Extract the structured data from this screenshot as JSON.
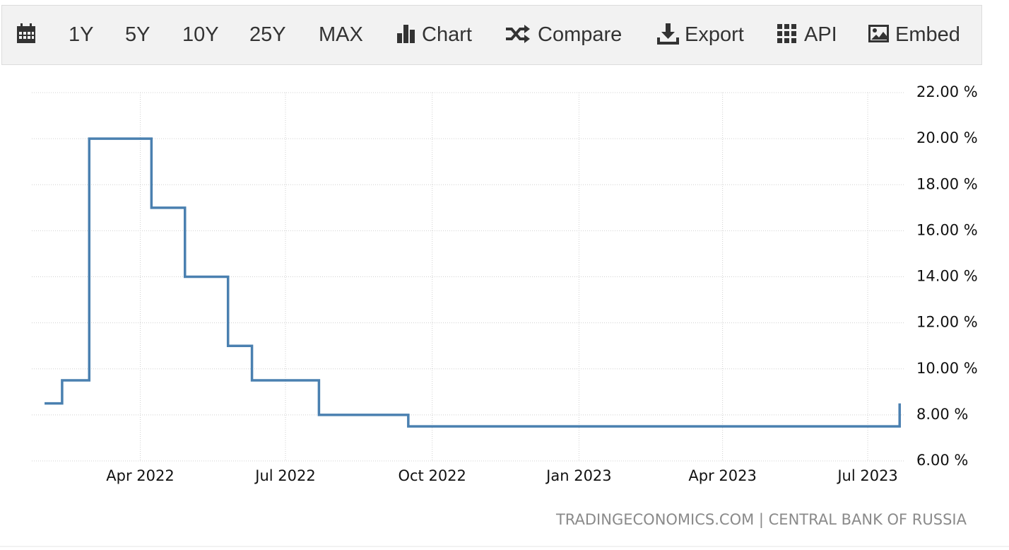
{
  "toolbar": {
    "buttons": [
      "1Y",
      "5Y",
      "10Y",
      "25Y",
      "MAX",
      "Chart",
      "Compare",
      "Export",
      "API",
      "Embed"
    ]
  },
  "chart_data": {
    "type": "line",
    "step": "after",
    "x": [
      "2022-01-31",
      "2022-02-11",
      "2022-02-28",
      "2022-04-08",
      "2022-04-29",
      "2022-05-26",
      "2022-06-10",
      "2022-07-22",
      "2022-09-16",
      "2023-07-21"
    ],
    "values": [
      8.5,
      9.5,
      20,
      17,
      14,
      11,
      9.5,
      8,
      7.5,
      8.5
    ],
    "color": "#4a80b0",
    "xlim": [
      "2022-01-23",
      "2023-07-24"
    ],
    "xticks": [
      {
        "value": "2022-04-01",
        "label": "Apr 2022"
      },
      {
        "value": "2022-07-01",
        "label": "Jul 2022"
      },
      {
        "value": "2022-10-01",
        "label": "Oct 2022"
      },
      {
        "value": "2023-01-01",
        "label": "Jan 2023"
      },
      {
        "value": "2023-04-01",
        "label": "Apr 2023"
      },
      {
        "value": "2023-07-01",
        "label": "Jul 2023"
      }
    ],
    "ylim": [
      6,
      22
    ],
    "yticks": [
      {
        "value": 6,
        "label": "6.00 %"
      },
      {
        "value": 8,
        "label": "8.00 %"
      },
      {
        "value": 10,
        "label": "10.00 %"
      },
      {
        "value": 12,
        "label": "12.00 %"
      },
      {
        "value": 14,
        "label": "14.00 %"
      },
      {
        "value": 16,
        "label": "16.00 %"
      },
      {
        "value": 18,
        "label": "18.00 %"
      },
      {
        "value": 20,
        "label": "20.00 %"
      },
      {
        "value": 22,
        "label": "22.00 %"
      }
    ],
    "grid": true,
    "source": "TRADINGECONOMICS.COM | CENTRAL BANK OF RUSSIA"
  }
}
